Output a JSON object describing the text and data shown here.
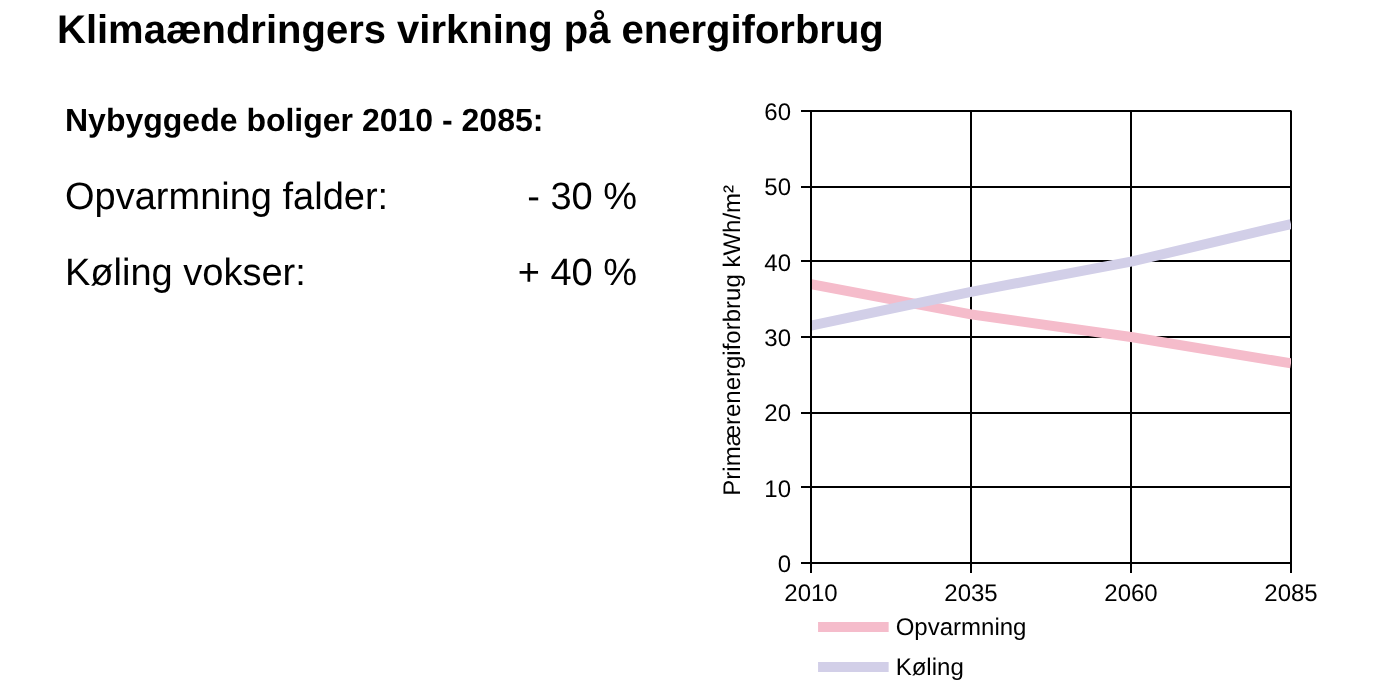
{
  "chart_data": {
    "type": "line",
    "title": "Klimaændringers virkning på energiforbrug",
    "subtitle": "Nybyggede boliger 2010 - 2085:",
    "annotations": [
      "Opvarmning falder:",
      "- 30 %",
      "Køling vokser:",
      "+ 40 %"
    ],
    "ylabel": "Primærenergiforbrug  kWh/m²",
    "x": [
      2010,
      2035,
      2060,
      2085
    ],
    "series": [
      {
        "name": "Opvarmning",
        "color": "#f5bccb",
        "values": [
          37,
          33,
          30,
          26.5
        ]
      },
      {
        "name": "Køling",
        "color": "#d2cfe8",
        "values": [
          31.5,
          36,
          40,
          45
        ]
      }
    ],
    "xlim": [
      2010,
      2085
    ],
    "xticks": [
      2010,
      2035,
      2060,
      2085
    ],
    "ylim": [
      0,
      60
    ],
    "yticks": [
      0,
      10,
      20,
      30,
      40,
      50,
      60
    ],
    "grid": true,
    "legend": "bottom",
    "line_style": "solid",
    "marker": "none"
  }
}
